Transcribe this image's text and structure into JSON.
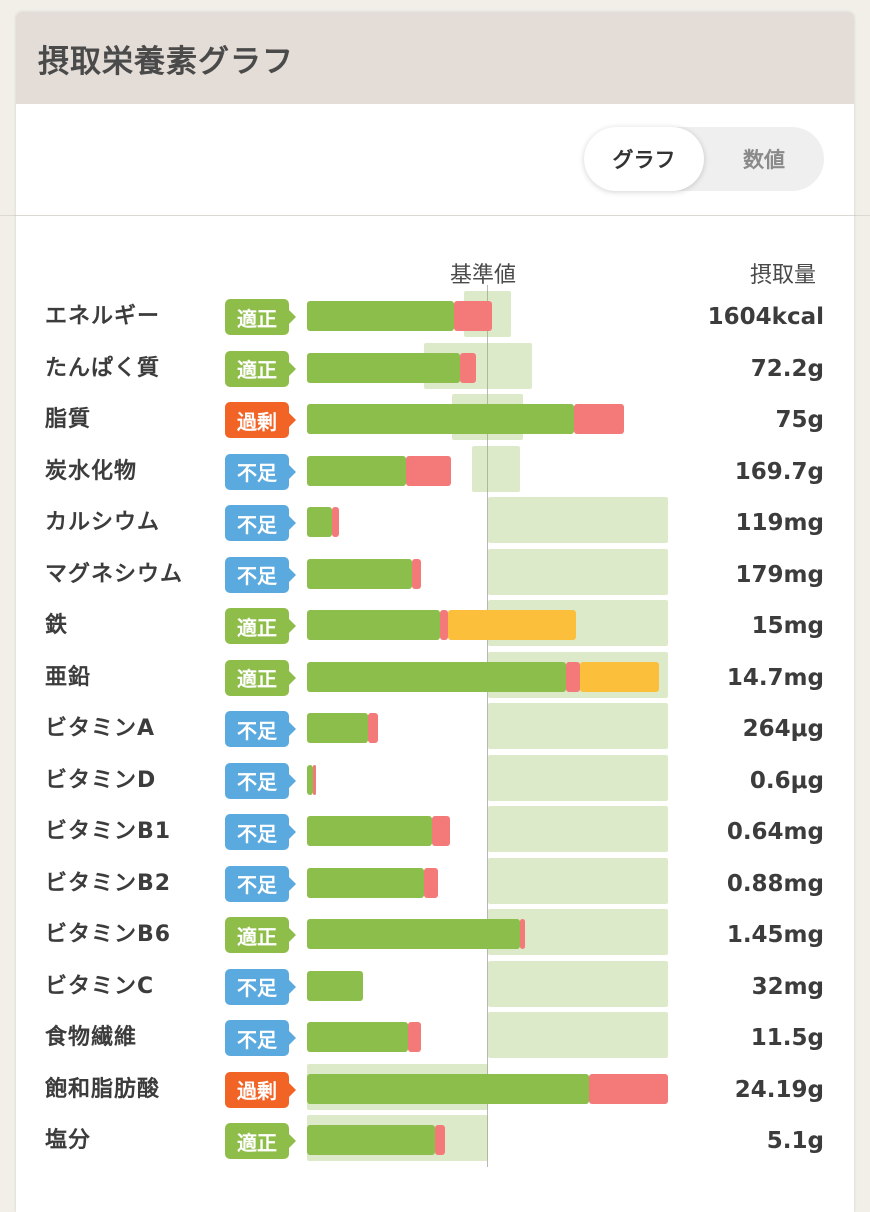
{
  "card": {
    "title": "摂取栄養素グラフ"
  },
  "toggle": {
    "graph_label": "グラフ",
    "numbers_label": "数値"
  },
  "columns": {
    "reference": "基準値",
    "intake": "摂取量"
  },
  "colors": {
    "green": "#8cbe4c",
    "red": "#f47a7a",
    "orange": "#fbbf3b",
    "status_ok": "#8fbd4a",
    "status_low": "#5aa9df",
    "status_over": "#f26326",
    "reference_band": "#dde9cc"
  },
  "rows": [
    {
      "name": "エネルギー",
      "status": "ok",
      "status_label": "適正",
      "amount": "1604kcal"
    },
    {
      "name": "たんぱく質",
      "status": "ok",
      "status_label": "適正",
      "amount": "72.2g"
    },
    {
      "name": "脂質",
      "status": "over",
      "status_label": "過剰",
      "amount": "75g"
    },
    {
      "name": "炭水化物",
      "status": "low",
      "status_label": "不足",
      "amount": "169.7g"
    },
    {
      "name": "カルシウム",
      "status": "low",
      "status_label": "不足",
      "amount": "119mg"
    },
    {
      "name": "マグネシウム",
      "status": "low",
      "status_label": "不足",
      "amount": "179mg"
    },
    {
      "name": "鉄",
      "status": "ok",
      "status_label": "適正",
      "amount": "15mg"
    },
    {
      "name": "亜鉛",
      "status": "ok",
      "status_label": "適正",
      "amount": "14.7mg"
    },
    {
      "name": "ビタミンA",
      "status": "low",
      "status_label": "不足",
      "amount": "264μg"
    },
    {
      "name": "ビタミンD",
      "status": "low",
      "status_label": "不足",
      "amount": "0.6μg"
    },
    {
      "name": "ビタミンB1",
      "status": "low",
      "status_label": "不足",
      "amount": "0.64mg"
    },
    {
      "name": "ビタミンB2",
      "status": "low",
      "status_label": "不足",
      "amount": "0.88mg"
    },
    {
      "name": "ビタミンB6",
      "status": "ok",
      "status_label": "適正",
      "amount": "1.45mg"
    },
    {
      "name": "ビタミンC",
      "status": "low",
      "status_label": "不足",
      "amount": "32mg"
    },
    {
      "name": "食物繊維",
      "status": "low",
      "status_label": "不足",
      "amount": "11.5g"
    },
    {
      "name": "飽和脂肪酸",
      "status": "over",
      "status_label": "過剰",
      "amount": "24.19g"
    },
    {
      "name": "塩分",
      "status": "ok",
      "status_label": "適正",
      "amount": "5.1g"
    }
  ]
}
